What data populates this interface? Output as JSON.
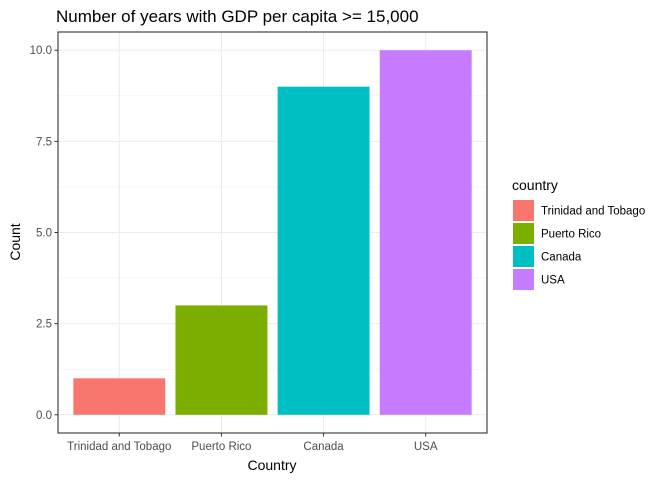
{
  "chart_data": {
    "type": "bar",
    "title": "Number of years with GDP per capita >= 15,000",
    "xlabel": "Country",
    "ylabel": "Count",
    "categories": [
      "Trinidad and Tobago",
      "Puerto Rico",
      "Canada",
      "USA"
    ],
    "values": [
      1,
      3,
      9,
      10
    ],
    "colors": [
      "#F8766D",
      "#7CAE00",
      "#00BFC4",
      "#C77CFF"
    ],
    "ylim": [
      -0.5,
      10.5
    ],
    "yticks": [
      0.0,
      2.5,
      5.0,
      7.5,
      10.0
    ],
    "ytick_labels": [
      "0.0",
      "2.5",
      "5.0",
      "7.5",
      "10.0"
    ],
    "grid": true,
    "legend": {
      "title": "country",
      "position": "right",
      "entries": [
        "Trinidad and Tobago",
        "Puerto Rico",
        "Canada",
        "USA"
      ]
    }
  }
}
